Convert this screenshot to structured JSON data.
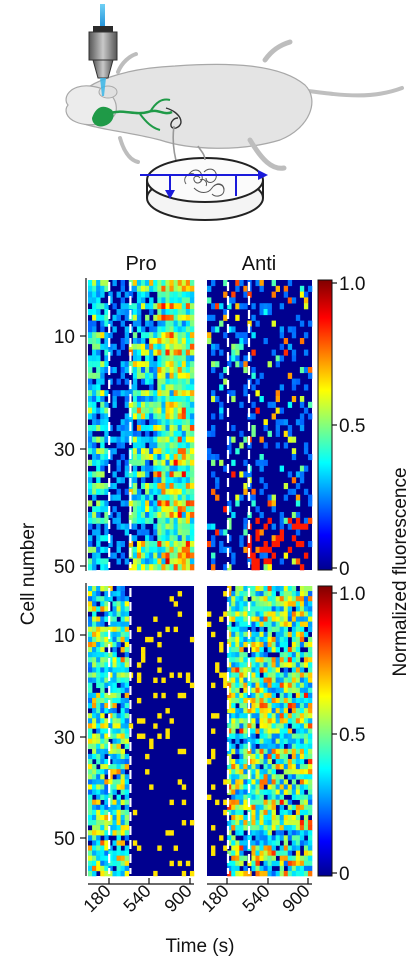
{
  "columns": [
    "Pro",
    "Anti"
  ],
  "y_axis_label": "Cell number",
  "x_axis_label": "Time (s)",
  "colorbar_label": "Normalized fluorescence",
  "colorbar_ticks": [
    "1.0",
    "0.5",
    "0"
  ],
  "x_ticks": [
    "180",
    "540",
    "900"
  ],
  "top_row_y_ticks": [
    "10",
    "30",
    "50"
  ],
  "bottom_row_y_ticks": [
    "10",
    "30",
    "50"
  ],
  "colors": {
    "dashed_line": "#ffffff",
    "arrow": "#1a1adb",
    "neuron": "#1f9a47",
    "light_beam": "#39b6e8"
  },
  "chart_data": [
    {
      "type": "heatmap",
      "title": "Pro",
      "rows": 50,
      "time_range": [
        0,
        900
      ],
      "stim_window": [
        180,
        360
      ],
      "value_range": [
        0,
        1
      ]
    },
    {
      "type": "heatmap",
      "title": "Anti",
      "rows": 50,
      "time_range": [
        0,
        900
      ],
      "stim_window": [
        180,
        360
      ],
      "value_range": [
        0,
        1
      ]
    },
    {
      "type": "heatmap",
      "title": "Pro",
      "rows": 57,
      "time_range": [
        0,
        900
      ],
      "stim_window": [
        180,
        360
      ],
      "value_range": [
        0,
        1
      ]
    },
    {
      "type": "heatmap",
      "title": "Anti",
      "rows": 57,
      "time_range": [
        0,
        900
      ],
      "stim_window": [
        180,
        360
      ],
      "value_range": [
        0,
        1
      ]
    }
  ]
}
